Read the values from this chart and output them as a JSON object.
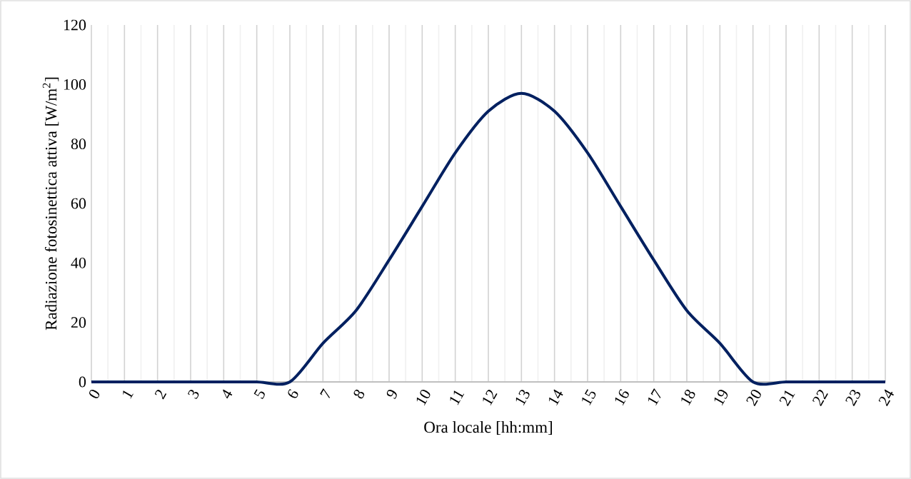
{
  "chart_data": {
    "type": "line",
    "xlabel": "Ora locale [hh:mm]",
    "ylabel": "Radiazione fotosinettica attiva [W/m$^{2}$]",
    "x": [
      0,
      1,
      2,
      3,
      4,
      5,
      6,
      7,
      8,
      9,
      10,
      11,
      12,
      13,
      14,
      15,
      16,
      17,
      18,
      19,
      20,
      21,
      22,
      23,
      24
    ],
    "series": [
      {
        "color": "#002060",
        "values": [
          0,
          0,
          0,
          0,
          0,
          0,
          0,
          13,
          24,
          41,
          59,
          77,
          91,
          97,
          91,
          77,
          59,
          41,
          24,
          13,
          0,
          0,
          0,
          0,
          0
        ]
      }
    ],
    "xlim": [
      0,
      24
    ],
    "xticks": [
      0,
      1,
      2,
      3,
      4,
      5,
      6,
      7,
      8,
      9,
      10,
      11,
      12,
      13,
      14,
      15,
      16,
      17,
      18,
      19,
      20,
      21,
      22,
      23,
      24
    ],
    "ylim": [
      0,
      120
    ],
    "yticks": [
      0,
      20,
      40,
      60,
      80,
      100,
      120
    ],
    "grid": "x",
    "legend": false,
    "marker": "none",
    "line_style": "solid"
  }
}
